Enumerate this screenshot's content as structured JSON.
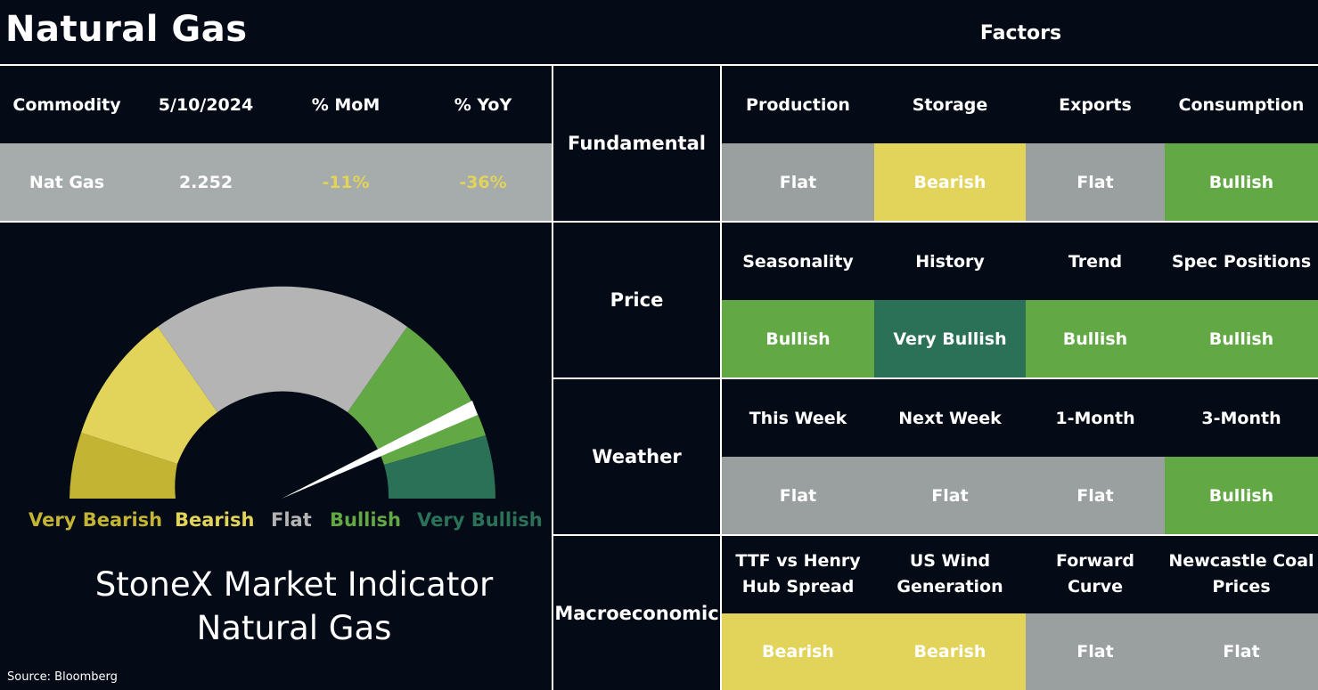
{
  "title": "Natural Gas",
  "factors_title": "Factors",
  "commodity_table": {
    "headers": [
      "Commodity",
      "5/10/2024",
      "% MoM",
      "% YoY"
    ],
    "row": [
      "Nat Gas",
      "2.252",
      "-11%",
      "-36%"
    ]
  },
  "gauge": {
    "labels": [
      "Very Bearish",
      "Bearish",
      "Flat",
      "Bullish",
      "Very Bullish"
    ],
    "segment_colors": [
      "#c4b434",
      "#e2d35a",
      "#b4b4b4",
      "#62a845",
      "#2b7158"
    ],
    "needle_reading": "Bullish"
  },
  "indicator": {
    "line1": "StoneX Market Indicator",
    "line2": "Natural Gas"
  },
  "source": "Source: Bloomberg",
  "colors": {
    "background": "#040b17",
    "flat": "#9aa0a0",
    "bearish": "#e2d35a",
    "bullish": "#62a845",
    "very_bullish": "#2b7158",
    "commodity_row": "#a6abab",
    "negative_text": "#e2d35a"
  },
  "factors": [
    {
      "category": "Fundamental",
      "items": [
        {
          "label": "Production",
          "value": "Flat"
        },
        {
          "label": "Storage",
          "value": "Bearish"
        },
        {
          "label": "Exports",
          "value": "Flat"
        },
        {
          "label": "Consumption",
          "value": "Bullish"
        }
      ]
    },
    {
      "category": "Price",
      "items": [
        {
          "label": "Seasonality",
          "value": "Bullish"
        },
        {
          "label": "History",
          "value": "Very Bullish"
        },
        {
          "label": "Trend",
          "value": "Bullish"
        },
        {
          "label": "Spec Positions",
          "value": "Bullish"
        }
      ]
    },
    {
      "category": "Weather",
      "items": [
        {
          "label": "This Week",
          "value": "Flat"
        },
        {
          "label": "Next Week",
          "value": "Flat"
        },
        {
          "label": "1-Month",
          "value": "Flat"
        },
        {
          "label": "3-Month",
          "value": "Bullish"
        }
      ]
    },
    {
      "category": "Macroeconomic",
      "items": [
        {
          "label": "TTF vs Henry Hub Spread",
          "label_line1": "TTF vs Henry",
          "label_line2": "Hub Spread",
          "value": "Bearish"
        },
        {
          "label": "US Wind Generation",
          "label_line1": "US Wind",
          "label_line2": "Generation",
          "value": "Bearish"
        },
        {
          "label": "Forward Curve",
          "label_line1": "Forward",
          "label_line2": "Curve",
          "value": "Flat"
        },
        {
          "label": "Newcastle Coal Prices",
          "label_line1": "Newcastle Coal",
          "label_line2": "Prices",
          "value": "Flat"
        }
      ]
    }
  ]
}
